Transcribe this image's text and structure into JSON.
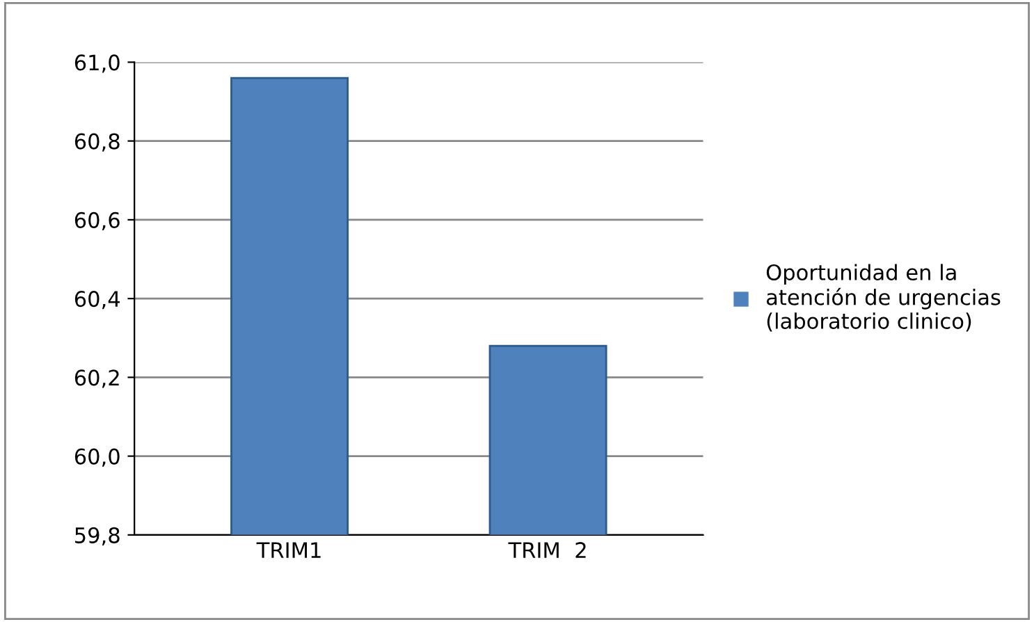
{
  "chart_data": {
    "type": "bar",
    "categories": [
      "TRIM1",
      "TRIM  2"
    ],
    "series": [
      {
        "name": "Oportunidad en la atención de urgencias (laboratorio clinico)",
        "color": "#4f81bd",
        "values": [
          60.96,
          60.28
        ]
      }
    ],
    "ylim": [
      59.8,
      61.0
    ],
    "yticks": [
      {
        "value": 59.8,
        "label": "59,8"
      },
      {
        "value": 60.0,
        "label": "60,0"
      },
      {
        "value": 60.2,
        "label": "60,2"
      },
      {
        "value": 60.4,
        "label": "60,4"
      },
      {
        "value": 60.6,
        "label": "60,6"
      },
      {
        "value": 60.8,
        "label": "60,8"
      },
      {
        "value": 61.0,
        "label": "61,0"
      }
    ],
    "grid": "y",
    "legend": "right"
  }
}
